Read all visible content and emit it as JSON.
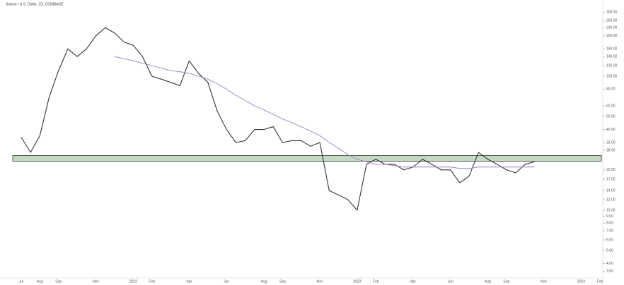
{
  "chart_data": {
    "type": "line",
    "title": "Solana / U.S. Dollar, 1D, COINBASE",
    "categories": [
      "Jul",
      null,
      "Aug",
      null,
      "Sep",
      null,
      null,
      null,
      "Nov",
      null,
      null,
      null,
      "2022",
      null,
      "Feb",
      null,
      null,
      null,
      "Apr",
      null,
      null,
      null,
      "Jun",
      null,
      null,
      null,
      "Aug",
      null,
      "Sep",
      null,
      null,
      null,
      "Nov",
      null,
      null,
      null,
      "2023",
      null,
      "Feb",
      null,
      null,
      null,
      "Apr",
      null,
      null,
      null,
      "Jun",
      null,
      null,
      null,
      "Aug",
      null,
      "Sep",
      null,
      null,
      null,
      "Nov",
      null,
      null,
      null,
      "2024",
      null,
      "Feb"
    ],
    "series": [
      {
        "color": "#333333",
        "values": [
          35,
          27,
          36,
          70,
          110,
          160,
          140,
          160,
          200,
          230,
          210,
          180,
          170,
          140,
          100,
          95,
          90,
          85,
          130,
          105,
          90,
          55,
          40,
          32,
          33,
          40,
          40,
          42,
          32,
          33,
          33,
          30,
          32,
          14,
          13,
          12,
          10,
          22,
          24,
          22,
          22,
          20,
          21,
          24,
          22,
          20,
          20,
          16,
          18,
          27,
          24,
          22,
          20,
          19,
          22,
          23,
          null,
          null,
          null,
          null,
          null,
          null,
          null
        ]
      },
      {
        "color": "#9c7fc9",
        "values": [
          null,
          null,
          null,
          null,
          null,
          null,
          null,
          null,
          null,
          null,
          140,
          135,
          130,
          125,
          120,
          115,
          110,
          108,
          105,
          100,
          95,
          88,
          80,
          72,
          66,
          60,
          56,
          52,
          48,
          45,
          42,
          39,
          36,
          32,
          29,
          26,
          24,
          23,
          22,
          22,
          21.5,
          21,
          21,
          21,
          21,
          21,
          21,
          20.5,
          20.5,
          21,
          21,
          21,
          21,
          21,
          21,
          21,
          null,
          null,
          null,
          null,
          null,
          null,
          null
        ]
      }
    ],
    "support_zone": [
      23.2,
      25.6
    ],
    "zone_color": "#8fbc8f",
    "log_scale": true,
    "ylim": [
      3.2,
      320
    ],
    "yticks": [
      {
        "value": 300,
        "label": "300.00"
      },
      {
        "value": 260,
        "label": "260.00"
      },
      {
        "value": 230,
        "label": "230.00"
      },
      {
        "value": 200,
        "label": "200.00"
      },
      {
        "value": 160,
        "label": "160.00"
      },
      {
        "value": 140,
        "label": "140.00"
      },
      {
        "value": 120,
        "label": "120.00"
      },
      {
        "value": 100,
        "label": "100.00"
      },
      {
        "value": 80,
        "label": "80.00"
      },
      {
        "value": 60,
        "label": "60.00"
      },
      {
        "value": 50,
        "label": "50.00"
      },
      {
        "value": 40,
        "label": "40.00"
      },
      {
        "value": 32,
        "label": "32.00"
      },
      {
        "value": 28,
        "label": "28.00"
      },
      {
        "value": 20,
        "label": "20.00"
      },
      {
        "value": 17,
        "label": "17.00"
      },
      {
        "value": 14,
        "label": "14.00"
      },
      {
        "value": 12,
        "label": "12.00"
      },
      {
        "value": 10,
        "label": "10.00"
      },
      {
        "value": 9,
        "label": "9.00"
      },
      {
        "value": 8,
        "label": "8.00"
      },
      {
        "value": 7,
        "label": "7.00"
      },
      {
        "value": 6,
        "label": "6.00"
      },
      {
        "value": 5,
        "label": "5.00"
      },
      {
        "value": 4,
        "label": "4.00"
      },
      {
        "value": 3.5,
        "label": "3.50"
      }
    ]
  }
}
